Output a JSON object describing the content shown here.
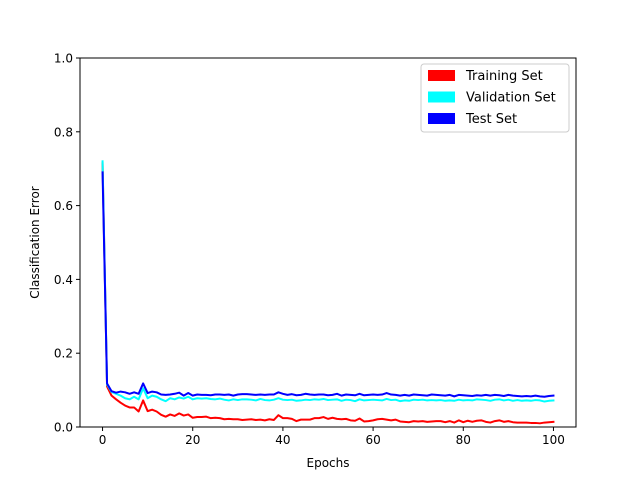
{
  "chart_data": {
    "type": "line",
    "xlabel": "Epochs",
    "ylabel": "Classification Error",
    "xlim": [
      -5,
      105
    ],
    "ylim": [
      0,
      1.0
    ],
    "xticks": [
      0,
      20,
      40,
      60,
      80,
      100
    ],
    "xtick_labels": [
      "0",
      "20",
      "40",
      "60",
      "80",
      "100"
    ],
    "yticks": [
      0,
      0.2,
      0.4,
      0.6,
      0.8,
      1.0
    ],
    "ytick_labels": [
      "0.0",
      "0.2",
      "0.4",
      "0.6",
      "0.8",
      "1.0"
    ],
    "grid": false,
    "legend_position": "top-right",
    "series": [
      {
        "name": "Training Set",
        "color": "#ff0000",
        "x": [
          0,
          1,
          2,
          3,
          4,
          5,
          6,
          7,
          8,
          9,
          10,
          11,
          12,
          13,
          14,
          15,
          16,
          17,
          18,
          19,
          20,
          21,
          22,
          23,
          24,
          25,
          26,
          27,
          28,
          29,
          30,
          31,
          32,
          33,
          34,
          35,
          36,
          37,
          38,
          39,
          40,
          41,
          42,
          43,
          44,
          45,
          46,
          47,
          48,
          49,
          50,
          51,
          52,
          53,
          54,
          55,
          56,
          57,
          58,
          59,
          60,
          61,
          62,
          63,
          64,
          65,
          66,
          67,
          68,
          69,
          70,
          71,
          72,
          73,
          74,
          75,
          76,
          77,
          78,
          79,
          80,
          81,
          82,
          83,
          84,
          85,
          86,
          87,
          88,
          89,
          90,
          91,
          92,
          93,
          94,
          95,
          96,
          97,
          98,
          99,
          100
        ],
        "values": [
          0.715,
          0.11,
          0.085,
          0.075,
          0.066,
          0.058,
          0.053,
          0.053,
          0.042,
          0.072,
          0.043,
          0.047,
          0.042,
          0.033,
          0.028,
          0.034,
          0.03,
          0.037,
          0.031,
          0.034,
          0.025,
          0.027,
          0.027,
          0.028,
          0.024,
          0.025,
          0.024,
          0.021,
          0.022,
          0.021,
          0.021,
          0.019,
          0.02,
          0.021,
          0.019,
          0.02,
          0.018,
          0.021,
          0.019,
          0.032,
          0.024,
          0.024,
          0.022,
          0.016,
          0.02,
          0.02,
          0.02,
          0.024,
          0.024,
          0.027,
          0.022,
          0.025,
          0.022,
          0.021,
          0.022,
          0.018,
          0.017,
          0.023,
          0.015,
          0.016,
          0.018,
          0.021,
          0.022,
          0.02,
          0.018,
          0.02,
          0.015,
          0.014,
          0.013,
          0.016,
          0.015,
          0.016,
          0.014,
          0.015,
          0.016,
          0.016,
          0.013,
          0.016,
          0.012,
          0.018,
          0.013,
          0.017,
          0.014,
          0.017,
          0.018,
          0.014,
          0.012,
          0.016,
          0.018,
          0.014,
          0.016,
          0.013,
          0.012,
          0.012,
          0.012,
          0.011,
          0.011,
          0.01,
          0.012,
          0.013,
          0.014
        ]
      },
      {
        "name": "Validation Set",
        "color": "#00ffff",
        "x": [
          0,
          1,
          2,
          3,
          4,
          5,
          6,
          7,
          8,
          9,
          10,
          11,
          12,
          13,
          14,
          15,
          16,
          17,
          18,
          19,
          20,
          21,
          22,
          23,
          24,
          25,
          26,
          27,
          28,
          29,
          30,
          31,
          32,
          33,
          34,
          35,
          36,
          37,
          38,
          39,
          40,
          41,
          42,
          43,
          44,
          45,
          46,
          47,
          48,
          49,
          50,
          51,
          52,
          53,
          54,
          55,
          56,
          57,
          58,
          59,
          60,
          61,
          62,
          63,
          64,
          65,
          66,
          67,
          68,
          69,
          70,
          71,
          72,
          73,
          74,
          75,
          76,
          77,
          78,
          79,
          80,
          81,
          82,
          83,
          84,
          85,
          86,
          87,
          88,
          89,
          90,
          91,
          92,
          93,
          94,
          95,
          96,
          97,
          98,
          99,
          100
        ],
        "values": [
          0.72,
          0.115,
          0.095,
          0.09,
          0.085,
          0.078,
          0.075,
          0.082,
          0.075,
          0.105,
          0.078,
          0.085,
          0.082,
          0.075,
          0.07,
          0.078,
          0.075,
          0.08,
          0.077,
          0.082,
          0.075,
          0.078,
          0.077,
          0.078,
          0.076,
          0.075,
          0.077,
          0.074,
          0.072,
          0.075,
          0.073,
          0.075,
          0.075,
          0.074,
          0.072,
          0.076,
          0.073,
          0.072,
          0.074,
          0.078,
          0.074,
          0.073,
          0.074,
          0.071,
          0.072,
          0.074,
          0.073,
          0.075,
          0.074,
          0.076,
          0.073,
          0.074,
          0.075,
          0.071,
          0.074,
          0.073,
          0.07,
          0.075,
          0.072,
          0.073,
          0.074,
          0.073,
          0.072,
          0.076,
          0.073,
          0.074,
          0.07,
          0.072,
          0.071,
          0.074,
          0.073,
          0.074,
          0.072,
          0.073,
          0.072,
          0.073,
          0.071,
          0.072,
          0.071,
          0.074,
          0.072,
          0.073,
          0.072,
          0.075,
          0.074,
          0.073,
          0.071,
          0.074,
          0.075,
          0.072,
          0.074,
          0.071,
          0.073,
          0.071,
          0.072,
          0.071,
          0.073,
          0.072,
          0.069,
          0.071,
          0.072
        ]
      },
      {
        "name": "Test Set",
        "color": "#0000ff",
        "x": [
          0,
          1,
          2,
          3,
          4,
          5,
          6,
          7,
          8,
          9,
          10,
          11,
          12,
          13,
          14,
          15,
          16,
          17,
          18,
          19,
          20,
          21,
          22,
          23,
          24,
          25,
          26,
          27,
          28,
          29,
          30,
          31,
          32,
          33,
          34,
          35,
          36,
          37,
          38,
          39,
          40,
          41,
          42,
          43,
          44,
          45,
          46,
          47,
          48,
          49,
          50,
          51,
          52,
          53,
          54,
          55,
          56,
          57,
          58,
          59,
          60,
          61,
          62,
          63,
          64,
          65,
          66,
          67,
          68,
          69,
          70,
          71,
          72,
          73,
          74,
          75,
          76,
          77,
          78,
          79,
          80,
          81,
          82,
          83,
          84,
          85,
          86,
          87,
          88,
          89,
          90,
          91,
          92,
          93,
          94,
          95,
          96,
          97,
          98,
          99,
          100
        ],
        "values": [
          0.69,
          0.118,
          0.097,
          0.093,
          0.096,
          0.094,
          0.09,
          0.094,
          0.09,
          0.118,
          0.092,
          0.096,
          0.094,
          0.088,
          0.087,
          0.088,
          0.09,
          0.093,
          0.085,
          0.092,
          0.085,
          0.088,
          0.087,
          0.087,
          0.086,
          0.088,
          0.088,
          0.087,
          0.088,
          0.085,
          0.088,
          0.089,
          0.089,
          0.088,
          0.087,
          0.088,
          0.087,
          0.088,
          0.088,
          0.094,
          0.09,
          0.087,
          0.089,
          0.086,
          0.087,
          0.09,
          0.088,
          0.087,
          0.088,
          0.088,
          0.086,
          0.087,
          0.09,
          0.085,
          0.088,
          0.087,
          0.086,
          0.09,
          0.086,
          0.087,
          0.088,
          0.087,
          0.088,
          0.092,
          0.088,
          0.087,
          0.085,
          0.087,
          0.085,
          0.088,
          0.087,
          0.086,
          0.085,
          0.088,
          0.087,
          0.086,
          0.085,
          0.087,
          0.083,
          0.087,
          0.086,
          0.085,
          0.084,
          0.086,
          0.085,
          0.087,
          0.085,
          0.087,
          0.086,
          0.084,
          0.087,
          0.085,
          0.084,
          0.083,
          0.084,
          0.083,
          0.085,
          0.083,
          0.082,
          0.084,
          0.085
        ]
      }
    ]
  }
}
